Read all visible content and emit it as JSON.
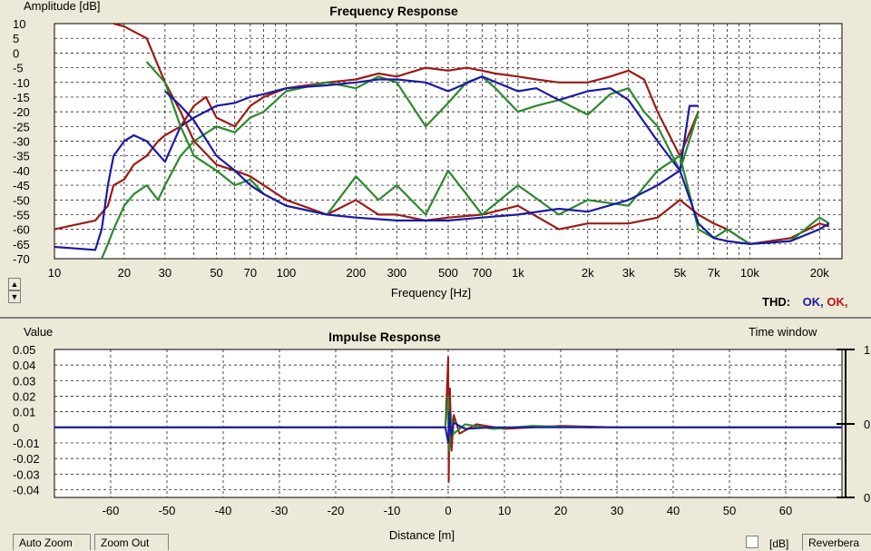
{
  "colors": {
    "red": "#9b1b14",
    "green": "#2a8a2a",
    "blue": "#1a1aa6",
    "grid": "#000000",
    "panel": "#ece9d8",
    "plot": "#ffffff"
  },
  "freq_panel": {
    "title": "Frequency Response",
    "ylabel": "Amplitude [dB]",
    "xlabel": "Frequency [Hz]",
    "thd_label": "THD:",
    "thd_values": [
      "OK,",
      "OK,"
    ]
  },
  "impulse_panel": {
    "title": "Impulse Response",
    "ylabel": "Value",
    "xlabel": "Distance [m]",
    "right_label": "Time window",
    "right_ticks": [
      "1",
      "0",
      "0"
    ]
  },
  "controls": {
    "auto_zoom": "Auto Zoom",
    "zoom_out": "Zoom Out",
    "db_label": "[dB]",
    "reverb_label": "Reverbera",
    "scroll_up": "▲",
    "scroll_down": "▼"
  },
  "chart_data": [
    {
      "type": "line",
      "title": "Frequency Response",
      "xlabel": "Frequency [Hz]",
      "ylabel": "Amplitude [dB]",
      "xscale": "log",
      "xlim": [
        10,
        25000
      ],
      "ylim": [
        -70,
        10
      ],
      "grid": true,
      "x_ticks": [
        "10",
        "20",
        "30",
        "50",
        "70",
        "100",
        "200",
        "300",
        "500",
        "700",
        "1k",
        "2k",
        "3k",
        "5k",
        "7k",
        "10k",
        "20k"
      ],
      "y_ticks": [
        "10",
        "5",
        "0",
        "-5",
        "-10",
        "-15",
        "-20",
        "-25",
        "-30",
        "-35",
        "-40",
        "-45",
        "-50",
        "-55",
        "-60",
        "-65",
        "-70"
      ],
      "series": [
        {
          "color": "#9b1b14",
          "x": [
            10,
            15,
            17,
            18,
            20,
            22,
            25,
            28,
            30,
            35,
            40,
            45,
            50,
            60,
            70,
            80,
            100,
            150,
            200,
            250,
            300,
            400,
            500,
            600,
            700,
            800,
            1000,
            1200,
            1500,
            2000,
            2500,
            3000,
            3500,
            4000,
            5000,
            6000
          ],
          "y": [
            -60,
            -57,
            -52,
            -45,
            -43,
            -38,
            -35,
            -30,
            -28,
            -25,
            -18,
            -15,
            -22,
            -25,
            -18,
            -15,
            -12,
            -10,
            -9,
            -7,
            -8,
            -5,
            -6,
            -5,
            -6,
            -7,
            -8,
            -9,
            -10,
            -10,
            -8,
            -6,
            -9,
            -20,
            -35,
            -20
          ]
        },
        {
          "color": "#2a8a2a",
          "x": [
            16,
            17,
            18,
            20,
            22,
            25,
            28,
            30,
            35,
            40,
            50,
            60,
            70,
            80,
            100,
            150,
            200,
            250,
            300,
            400,
            500,
            600,
            700,
            800,
            1000,
            1200,
            1500,
            2000,
            2500,
            3000,
            3500,
            4000,
            5000,
            6000
          ],
          "y": [
            -70,
            -65,
            -60,
            -52,
            -48,
            -45,
            -50,
            -45,
            -35,
            -30,
            -25,
            -27,
            -22,
            -20,
            -13,
            -10,
            -12,
            -8,
            -10,
            -25,
            -17,
            -10,
            -8,
            -12,
            -20,
            -18,
            -16,
            -21,
            -14,
            -12,
            -20,
            -25,
            -40,
            -20
          ]
        },
        {
          "color": "#1a1aa6",
          "x": [
            10,
            15,
            16,
            17,
            18,
            20,
            22,
            25,
            30,
            35,
            40,
            50,
            60,
            70,
            80,
            100,
            150,
            200,
            250,
            300,
            400,
            500,
            700,
            1000,
            1200,
            1500,
            2000,
            2500,
            3000,
            4000,
            5000,
            5500,
            6000
          ],
          "y": [
            -66,
            -67,
            -60,
            -45,
            -35,
            -30,
            -28,
            -30,
            -37,
            -25,
            -22,
            -18,
            -17,
            -15,
            -14,
            -12,
            -11,
            -10,
            -9,
            -9,
            -10,
            -13,
            -8,
            -13,
            -12,
            -16,
            -13,
            -12,
            -16,
            -30,
            -40,
            -18,
            -18
          ]
        },
        {
          "color": "#9b1b14",
          "x": [
            18,
            20,
            25,
            30,
            35,
            40,
            50,
            60,
            70,
            80,
            100,
            150,
            200,
            250,
            300,
            400,
            500,
            700,
            1000,
            1500,
            2000,
            3000,
            4000,
            5000,
            6000,
            7000,
            8000,
            10000,
            15000,
            20000,
            22000
          ],
          "y": [
            10,
            9,
            5,
            -10,
            -20,
            -30,
            -38,
            -40,
            -42,
            -45,
            -50,
            -55,
            -50,
            -55,
            -55,
            -57,
            -56,
            -55,
            -52,
            -60,
            -58,
            -58,
            -56,
            -50,
            -55,
            -58,
            -60,
            -65,
            -63,
            -58,
            -59
          ]
        },
        {
          "color": "#2a8a2a",
          "x": [
            25,
            30,
            35,
            40,
            50,
            60,
            70,
            80,
            100,
            150,
            200,
            250,
            300,
            400,
            500,
            700,
            1000,
            1500,
            2000,
            3000,
            4000,
            5000,
            6000,
            7000,
            8000,
            10000,
            15000,
            20000,
            22000
          ],
          "y": [
            -3,
            -10,
            -25,
            -35,
            -40,
            -45,
            -43,
            -48,
            -52,
            -55,
            -42,
            -50,
            -45,
            -55,
            -40,
            -55,
            -45,
            -55,
            -50,
            -52,
            -40,
            -35,
            -60,
            -63,
            -60,
            -65,
            -64,
            -56,
            -58
          ]
        },
        {
          "color": "#1a1aa6",
          "x": [
            30,
            35,
            40,
            50,
            60,
            70,
            80,
            100,
            150,
            200,
            300,
            500,
            700,
            1000,
            1500,
            2000,
            3000,
            4000,
            5000,
            6000,
            7000,
            8000,
            10000,
            15000,
            20000,
            22000
          ],
          "y": [
            -13,
            -18,
            -23,
            -35,
            -40,
            -45,
            -48,
            -52,
            -55,
            -56,
            -57,
            -57,
            -56,
            -55,
            -53,
            -54,
            -50,
            -45,
            -40,
            -58,
            -63,
            -64,
            -65,
            -64,
            -60,
            -58
          ]
        }
      ]
    },
    {
      "type": "line",
      "title": "Impulse Response",
      "xlabel": "Distance [m]",
      "ylabel": "Value",
      "xlim": [
        -70,
        70
      ],
      "ylim": [
        -0.045,
        0.05
      ],
      "grid": true,
      "x_ticks": [
        "-60",
        "-50",
        "-40",
        "-30",
        "-20",
        "-10",
        "0",
        "10",
        "20",
        "30",
        "40",
        "50",
        "60"
      ],
      "y_ticks": [
        "0.05",
        "0.04",
        "0.03",
        "0.02",
        "0.01",
        "0",
        "-0.01",
        "-0.02",
        "-0.03",
        "-0.04"
      ],
      "series": [
        {
          "color": "#9b1b14",
          "x": [
            -70,
            -0.5,
            0,
            0.1,
            0.3,
            0.6,
            1,
            2,
            5,
            10,
            20,
            30,
            70
          ],
          "y": [
            0,
            0,
            0.045,
            -0.035,
            0.025,
            -0.015,
            0.008,
            -0.004,
            0.002,
            -0.001,
            0.001,
            0,
            0
          ]
        },
        {
          "color": "#2a8a2a",
          "x": [
            -70,
            -0.5,
            0,
            0.2,
            0.5,
            1,
            3,
            8,
            15,
            25,
            70
          ],
          "y": [
            0,
            0,
            0.02,
            -0.015,
            0.008,
            -0.004,
            0.002,
            -0.001,
            0.001,
            0,
            0
          ]
        },
        {
          "color": "#1a1aa6",
          "x": [
            -70,
            -0.5,
            0,
            0.2,
            0.5,
            1,
            3,
            8,
            70
          ],
          "y": [
            0,
            0,
            -0.01,
            0.01,
            -0.005,
            0.003,
            -0.001,
            0,
            0
          ]
        }
      ]
    }
  ]
}
